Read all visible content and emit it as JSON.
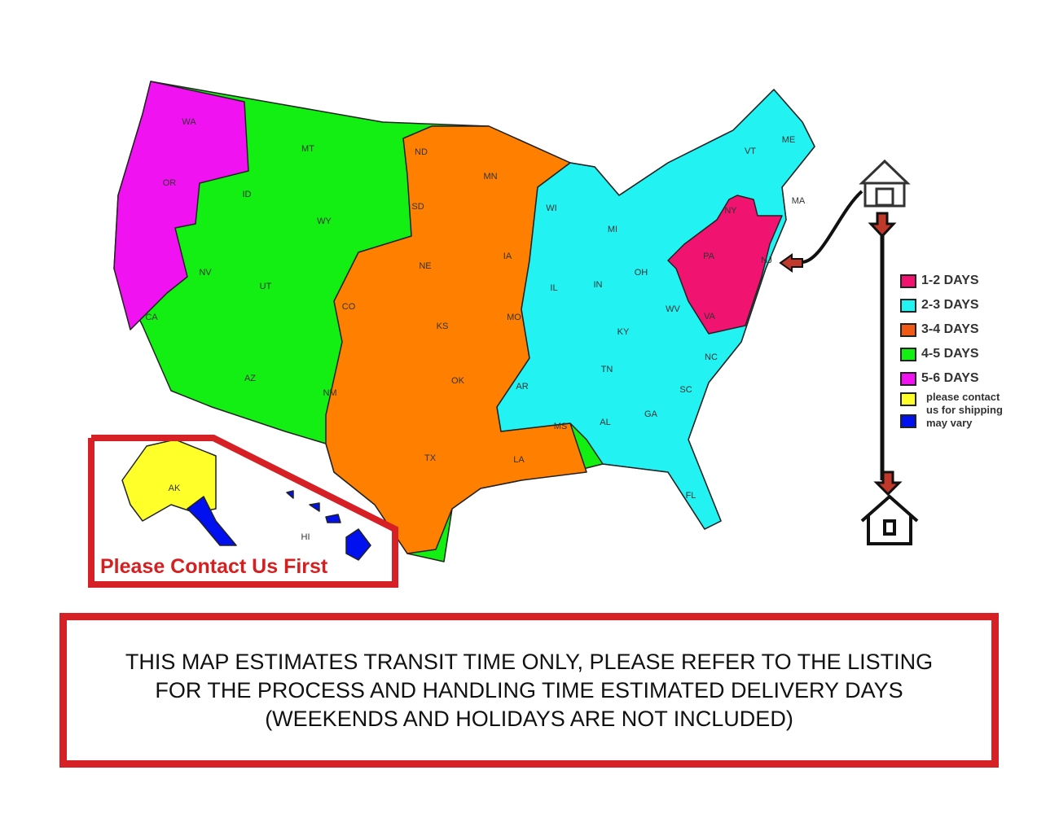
{
  "colors": {
    "1-2": "#f0136f",
    "2-3": "#22f2f2",
    "3-4": "#ff7f00",
    "4-5": "#13ee13",
    "5-6": "#f012f0",
    "contact": "#ffff2a",
    "vary": "#0010ee",
    "frame": "#d71f26"
  },
  "states": [
    {
      "code": "WA"
    },
    {
      "code": "OR"
    },
    {
      "code": "CA"
    },
    {
      "code": "NV"
    },
    {
      "code": "ID"
    },
    {
      "code": "MT"
    },
    {
      "code": "WY"
    },
    {
      "code": "UT"
    },
    {
      "code": "AZ"
    },
    {
      "code": "NM"
    },
    {
      "code": "CO"
    },
    {
      "code": "ND"
    },
    {
      "code": "SD"
    },
    {
      "code": "NE"
    },
    {
      "code": "KS"
    },
    {
      "code": "OK"
    },
    {
      "code": "TX"
    },
    {
      "code": "MN"
    },
    {
      "code": "IA"
    },
    {
      "code": "MO"
    },
    {
      "code": "AR"
    },
    {
      "code": "LA"
    },
    {
      "code": "WI"
    },
    {
      "code": "IL"
    },
    {
      "code": "MI"
    },
    {
      "code": "IN"
    },
    {
      "code": "OH"
    },
    {
      "code": "KY"
    },
    {
      "code": "TN"
    },
    {
      "code": "MS"
    },
    {
      "code": "AL"
    },
    {
      "code": "GA"
    },
    {
      "code": "FL"
    },
    {
      "code": "SC"
    },
    {
      "code": "NC"
    },
    {
      "code": "WV"
    },
    {
      "code": "VA"
    },
    {
      "code": "PA"
    },
    {
      "code": "NY"
    },
    {
      "code": "NJ"
    },
    {
      "code": "VT"
    },
    {
      "code": "ME"
    },
    {
      "code": "MA"
    },
    {
      "code": "AK"
    },
    {
      "code": "HI"
    }
  ],
  "legend": [
    {
      "label": "1-2 DAYS",
      "color": "#f0136f"
    },
    {
      "label": "2-3 DAYS",
      "color": "#22f2f2"
    },
    {
      "label": "3-4 DAYS",
      "color": "#f05a14"
    },
    {
      "label": "4-5 DAYS",
      "color": "#13ee13"
    },
    {
      "label": "5-6 DAYS",
      "color": "#f012f0"
    }
  ],
  "legend_note": {
    "line1": "please contact",
    "line2": "us for shipping",
    "line3": "may vary",
    "color1": "#ffff2a",
    "color2": "#0010ee"
  },
  "icons": {
    "origin": "warehouse-icon",
    "destination": "house-icon"
  },
  "inset_label": "Please Contact Us First",
  "notice": "THIS MAP ESTIMATES TRANSIT TIME ONLY, PLEASE REFER TO THE LISTING FOR THE PROCESS AND HANDLING TIME ESTIMATED DELIVERY DAYS (WEEKENDS AND HOLIDAYS ARE NOT INCLUDED)"
}
